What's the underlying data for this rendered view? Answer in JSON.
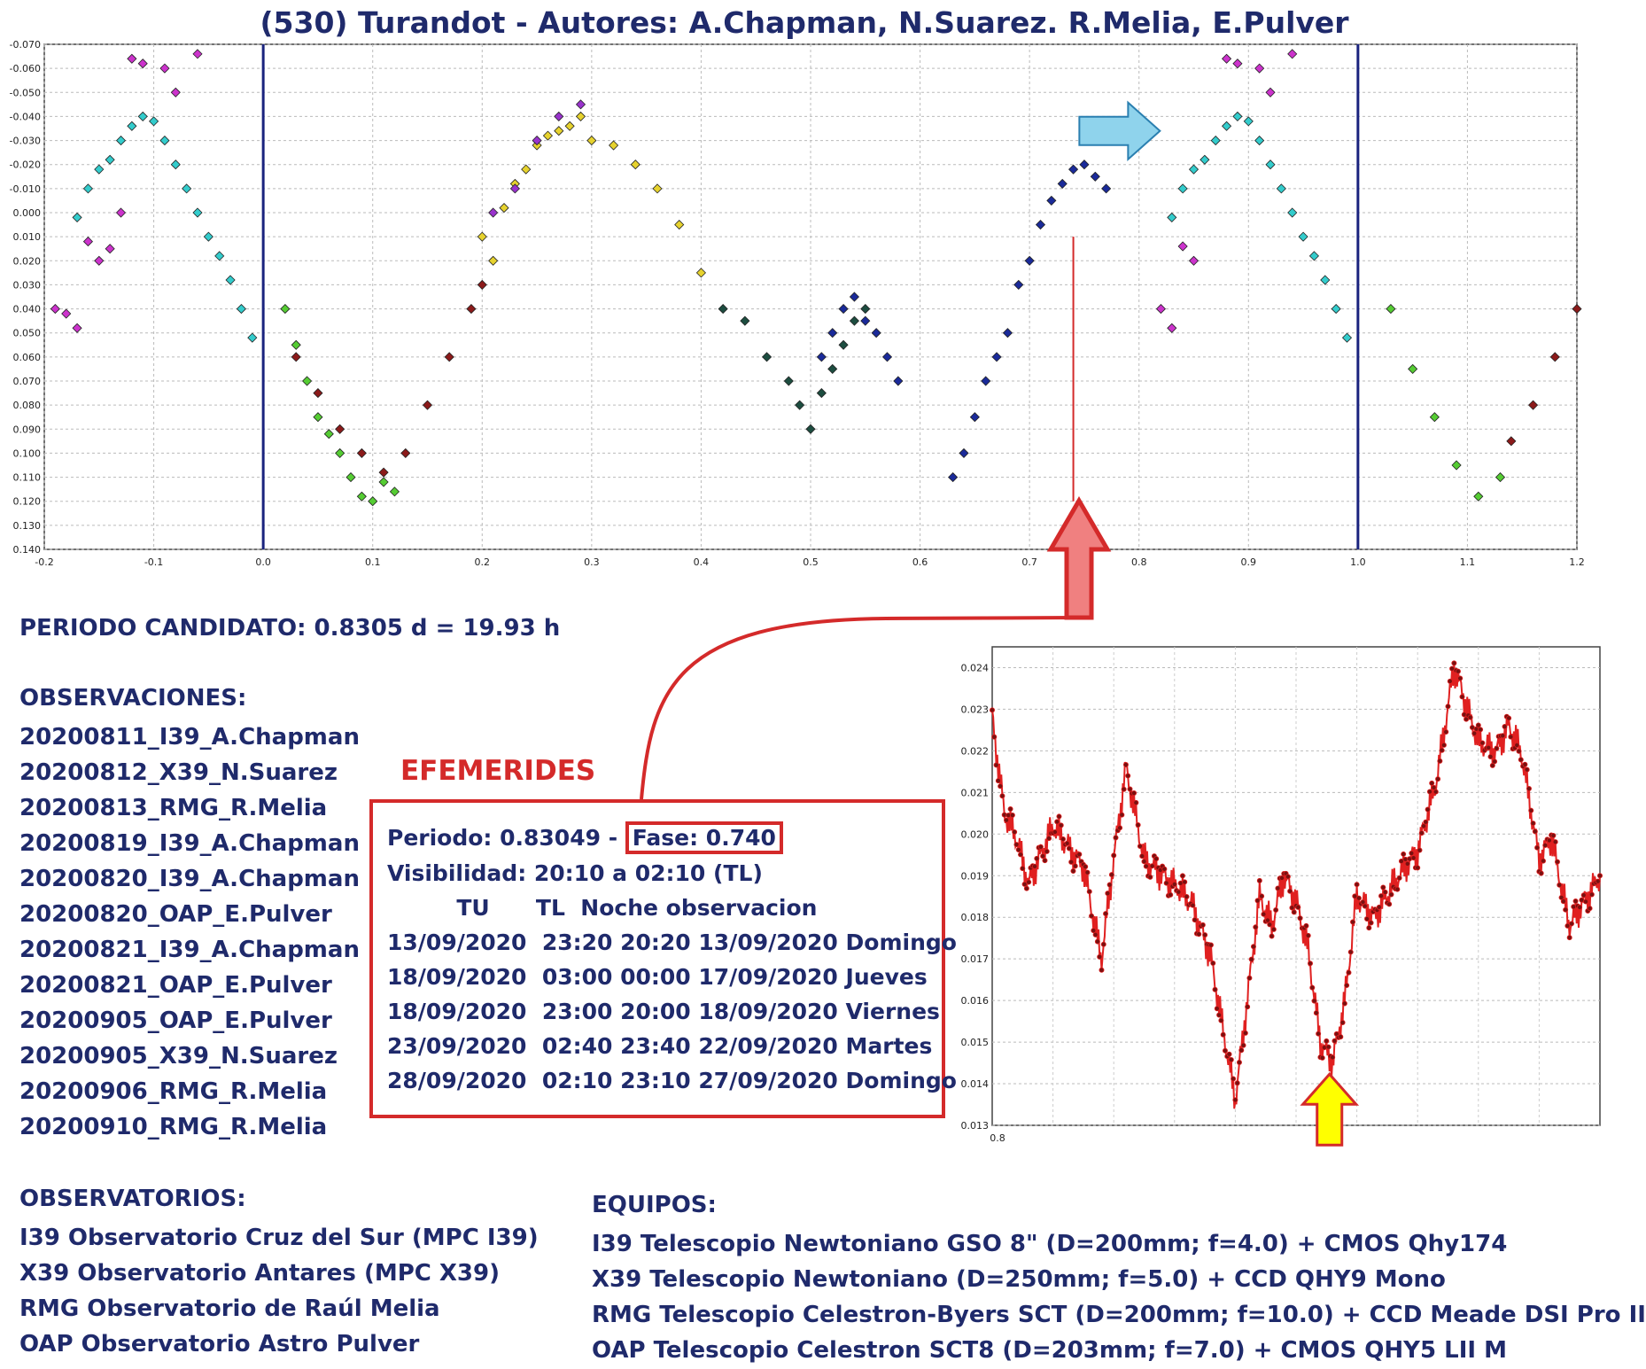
{
  "title": "(530) Turandot - Autores: A.Chapman, N.Suarez. R.Melia, E.Pulver",
  "periodo": "PERIODO CANDIDATO: 0.8305 d = 19.93 h",
  "observaciones": {
    "heading": "OBSERVACIONES:",
    "items": [
      "20200811_I39_A.Chapman",
      "20200812_X39_N.Suarez",
      "20200813_RMG_R.Melia",
      "20200819_I39_A.Chapman",
      "20200820_I39_A.Chapman",
      "20200820_OAP_E.Pulver",
      "20200821_I39_A.Chapman",
      "20200821_OAP_E.Pulver",
      "20200905_OAP_E.Pulver",
      "20200905_X39_N.Suarez",
      "20200906_RMG_R.Melia",
      "20200910_RMG_R.Melia"
    ]
  },
  "efemerides": {
    "heading": "EFEMERIDES",
    "periodo": "Periodo: 0.83049 - ",
    "fase": "Fase: 0.740",
    "visibilidad": "Visibilidad: 20:10 a 02:10 (TL)",
    "header": "         TU      TL  Noche observacion",
    "rows": [
      "13/09/2020  23:20 20:20 13/09/2020 Domingo",
      "18/09/2020  03:00 00:00 17/09/2020 Jueves",
      "18/09/2020  23:00 20:00 18/09/2020 Viernes",
      "23/09/2020  02:40 23:40 22/09/2020 Martes",
      "28/09/2020  02:10 23:10 27/09/2020 Domingo"
    ]
  },
  "observatorios": {
    "heading": "OBSERVATORIOS:",
    "items": [
      "I39 Observatorio Cruz del Sur (MPC I39)",
      "X39 Observatorio Antares (MPC X39)",
      "RMG Observatorio de Raúl Melia",
      "OAP Observatorio Astro Pulver"
    ]
  },
  "equipos": {
    "heading": "EQUIPOS:",
    "items": [
      "I39 Telescopio Newtoniano GSO 8\" (D=200mm; f=4.0) + CMOS Qhy174",
      "X39 Telescopio Newtoniano (D=250mm; f=5.0) + CCD QHY9 Mono",
      "RMG Telescopio Celestron-Byers SCT (D=200mm; f=10.0) + CCD Meade DSI Pro II",
      "OAP Telescopio Celestron SCT8 (D=203mm; f=7.0) + CMOS QHY5 LII M"
    ]
  },
  "colors": {
    "text": "#1f2a6b",
    "accent_red": "#d42a2a",
    "period_line": "#1a237e",
    "arrow_blue": "#8fd3ec",
    "arrow_red": "#f08080",
    "arrow_yellow": "#ffff00"
  },
  "chart_data": [
    {
      "type": "scatter",
      "title": "",
      "xlabel": "",
      "ylabel": "",
      "xlim": [
        -0.2,
        1.2
      ],
      "ylim": [
        -0.07,
        0.14
      ],
      "y_inverted": true,
      "grid": true,
      "x_ticks": [
        "-0.2",
        "-0.1",
        "0.0",
        "0.1",
        "0.2",
        "0.3",
        "0.4",
        "0.5",
        "0.6",
        "0.7",
        "0.8",
        "0.9",
        "1.0",
        "1.1",
        "1.2"
      ],
      "y_ticks": [
        "-0.070",
        "-0.060",
        "-0.050",
        "-0.040",
        "-0.030",
        "-0.020",
        "-0.010",
        "0.000",
        "0.010",
        "0.020",
        "0.030",
        "0.040",
        "0.050",
        "0.060",
        "0.070",
        "0.080",
        "0.090",
        "0.100",
        "0.110",
        "0.120",
        "0.130",
        "0.140"
      ],
      "vertical_lines": [
        0.0,
        1.0
      ],
      "series": [
        {
          "color": "#cc33cc",
          "points": [
            [
              -0.19,
              0.04
            ],
            [
              -0.18,
              0.042
            ],
            [
              -0.17,
              0.048
            ],
            [
              -0.16,
              0.012
            ],
            [
              -0.15,
              0.02
            ],
            [
              -0.14,
              0.015
            ],
            [
              -0.12,
              -0.064
            ],
            [
              -0.11,
              -0.062
            ],
            [
              -0.09,
              -0.06
            ],
            [
              -0.08,
              -0.05
            ],
            [
              -0.06,
              -0.066
            ],
            [
              -0.13,
              0.0
            ]
          ]
        },
        {
          "color": "#33cccc",
          "points": [
            [
              -0.17,
              0.002
            ],
            [
              -0.16,
              -0.01
            ],
            [
              -0.15,
              -0.018
            ],
            [
              -0.14,
              -0.022
            ],
            [
              -0.13,
              -0.03
            ],
            [
              -0.12,
              -0.036
            ],
            [
              -0.11,
              -0.04
            ],
            [
              -0.1,
              -0.038
            ],
            [
              -0.09,
              -0.03
            ],
            [
              -0.08,
              -0.02
            ],
            [
              -0.07,
              -0.01
            ],
            [
              -0.06,
              0.0
            ],
            [
              -0.05,
              0.01
            ],
            [
              -0.04,
              0.018
            ],
            [
              -0.03,
              0.028
            ],
            [
              -0.02,
              0.04
            ],
            [
              -0.01,
              0.052
            ]
          ]
        },
        {
          "color": "#55cc33",
          "points": [
            [
              0.02,
              0.04
            ],
            [
              0.03,
              0.055
            ],
            [
              0.04,
              0.07
            ],
            [
              0.05,
              0.085
            ],
            [
              0.06,
              0.092
            ],
            [
              0.07,
              0.1
            ],
            [
              0.08,
              0.11
            ],
            [
              0.09,
              0.118
            ],
            [
              0.1,
              0.12
            ],
            [
              0.11,
              0.112
            ],
            [
              0.12,
              0.116
            ],
            [
              1.03,
              0.04
            ],
            [
              1.05,
              0.065
            ],
            [
              1.07,
              0.085
            ],
            [
              1.09,
              0.105
            ],
            [
              1.11,
              0.118
            ],
            [
              1.13,
              0.11
            ]
          ]
        },
        {
          "color": "#8b1a1a",
          "points": [
            [
              0.03,
              0.06
            ],
            [
              0.05,
              0.075
            ],
            [
              0.07,
              0.09
            ],
            [
              0.09,
              0.1
            ],
            [
              0.11,
              0.108
            ],
            [
              0.13,
              0.1
            ],
            [
              0.15,
              0.08
            ],
            [
              0.17,
              0.06
            ],
            [
              0.19,
              0.04
            ],
            [
              0.2,
              0.03
            ],
            [
              1.14,
              0.095
            ],
            [
              1.16,
              0.08
            ],
            [
              1.18,
              0.06
            ],
            [
              1.2,
              0.04
            ]
          ]
        },
        {
          "color": "#e6d22e",
          "points": [
            [
              0.2,
              0.01
            ],
            [
              0.21,
              0.02
            ],
            [
              0.22,
              -0.002
            ],
            [
              0.23,
              -0.012
            ],
            [
              0.24,
              -0.018
            ],
            [
              0.25,
              -0.028
            ],
            [
              0.26,
              -0.032
            ],
            [
              0.27,
              -0.034
            ],
            [
              0.28,
              -0.036
            ],
            [
              0.29,
              -0.04
            ],
            [
              0.3,
              -0.03
            ],
            [
              0.32,
              -0.028
            ],
            [
              0.34,
              -0.02
            ],
            [
              0.36,
              -0.01
            ],
            [
              0.38,
              0.005
            ],
            [
              0.4,
              0.025
            ]
          ]
        },
        {
          "color": "#9933cc",
          "points": [
            [
              0.21,
              0.0
            ],
            [
              0.23,
              -0.01
            ],
            [
              0.25,
              -0.03
            ],
            [
              0.27,
              -0.04
            ],
            [
              0.29,
              -0.045
            ]
          ]
        },
        {
          "color": "#1d4d40",
          "points": [
            [
              0.42,
              0.04
            ],
            [
              0.44,
              0.045
            ],
            [
              0.46,
              0.06
            ],
            [
              0.48,
              0.07
            ],
            [
              0.49,
              0.08
            ],
            [
              0.5,
              0.09
            ],
            [
              0.51,
              0.075
            ],
            [
              0.52,
              0.065
            ],
            [
              0.53,
              0.055
            ],
            [
              0.54,
              0.045
            ],
            [
              0.55,
              0.04
            ]
          ]
        },
        {
          "color": "#1a2a99",
          "points": [
            [
              0.51,
              0.06
            ],
            [
              0.52,
              0.05
            ],
            [
              0.53,
              0.04
            ],
            [
              0.54,
              0.035
            ],
            [
              0.55,
              0.045
            ],
            [
              0.56,
              0.05
            ],
            [
              0.57,
              0.06
            ],
            [
              0.58,
              0.07
            ],
            [
              0.63,
              0.11
            ],
            [
              0.64,
              0.1
            ],
            [
              0.65,
              0.085
            ],
            [
              0.66,
              0.07
            ],
            [
              0.67,
              0.06
            ],
            [
              0.68,
              0.05
            ],
            [
              0.69,
              0.03
            ],
            [
              0.7,
              0.02
            ],
            [
              0.71,
              0.005
            ],
            [
              0.72,
              -0.005
            ],
            [
              0.73,
              -0.012
            ],
            [
              0.74,
              -0.018
            ],
            [
              0.75,
              -0.02
            ],
            [
              0.76,
              -0.015
            ],
            [
              0.77,
              -0.01
            ]
          ]
        },
        {
          "color": "#cc33cc",
          "points": [
            [
              0.82,
              0.04
            ],
            [
              0.83,
              0.048
            ],
            [
              0.84,
              0.014
            ],
            [
              0.85,
              0.02
            ],
            [
              0.88,
              -0.064
            ],
            [
              0.89,
              -0.062
            ],
            [
              0.91,
              -0.06
            ],
            [
              0.92,
              -0.05
            ],
            [
              0.94,
              -0.066
            ]
          ]
        },
        {
          "color": "#33cccc",
          "points": [
            [
              0.83,
              0.002
            ],
            [
              0.84,
              -0.01
            ],
            [
              0.85,
              -0.018
            ],
            [
              0.86,
              -0.022
            ],
            [
              0.87,
              -0.03
            ],
            [
              0.88,
              -0.036
            ],
            [
              0.89,
              -0.04
            ],
            [
              0.9,
              -0.038
            ],
            [
              0.91,
              -0.03
            ],
            [
              0.92,
              -0.02
            ],
            [
              0.93,
              -0.01
            ],
            [
              0.94,
              0.0
            ],
            [
              0.95,
              0.01
            ],
            [
              0.96,
              0.018
            ],
            [
              0.97,
              0.028
            ],
            [
              0.98,
              0.04
            ],
            [
              0.99,
              0.052
            ]
          ]
        }
      ]
    },
    {
      "type": "line",
      "title": "",
      "xlabel": "",
      "ylabel": "",
      "ylim": [
        0.013,
        0.0245
      ],
      "grid": true,
      "x_ticks": [
        "0.8"
      ],
      "y_ticks": [
        "0.024",
        "0.023",
        "0.022",
        "0.021",
        "0.020",
        "0.019",
        "0.018",
        "0.017",
        "0.016",
        "0.015",
        "0.014",
        "0.013"
      ],
      "series": [
        {
          "color": "#e02020",
          "x": [
            0,
            2,
            4,
            6,
            8,
            10,
            12,
            15,
            18,
            20,
            22,
            25,
            28,
            30,
            33,
            36,
            40,
            44,
            46,
            48,
            50,
            52,
            54,
            56,
            58,
            60,
            63,
            66,
            70,
            73,
            76,
            80,
            83,
            85,
            87,
            90,
            92,
            95,
            100
          ],
          "y": [
            0.0228,
            0.0205,
            0.0199,
            0.0188,
            0.0195,
            0.0202,
            0.0198,
            0.0192,
            0.017,
            0.0194,
            0.0216,
            0.0194,
            0.019,
            0.0188,
            0.0183,
            0.017,
            0.0136,
            0.0185,
            0.0178,
            0.019,
            0.0184,
            0.0172,
            0.015,
            0.0145,
            0.016,
            0.0185,
            0.018,
            0.0188,
            0.0196,
            0.0212,
            0.024,
            0.0222,
            0.022,
            0.0226,
            0.022,
            0.0194,
            0.0199,
            0.0178,
            0.019
          ]
        }
      ]
    }
  ]
}
